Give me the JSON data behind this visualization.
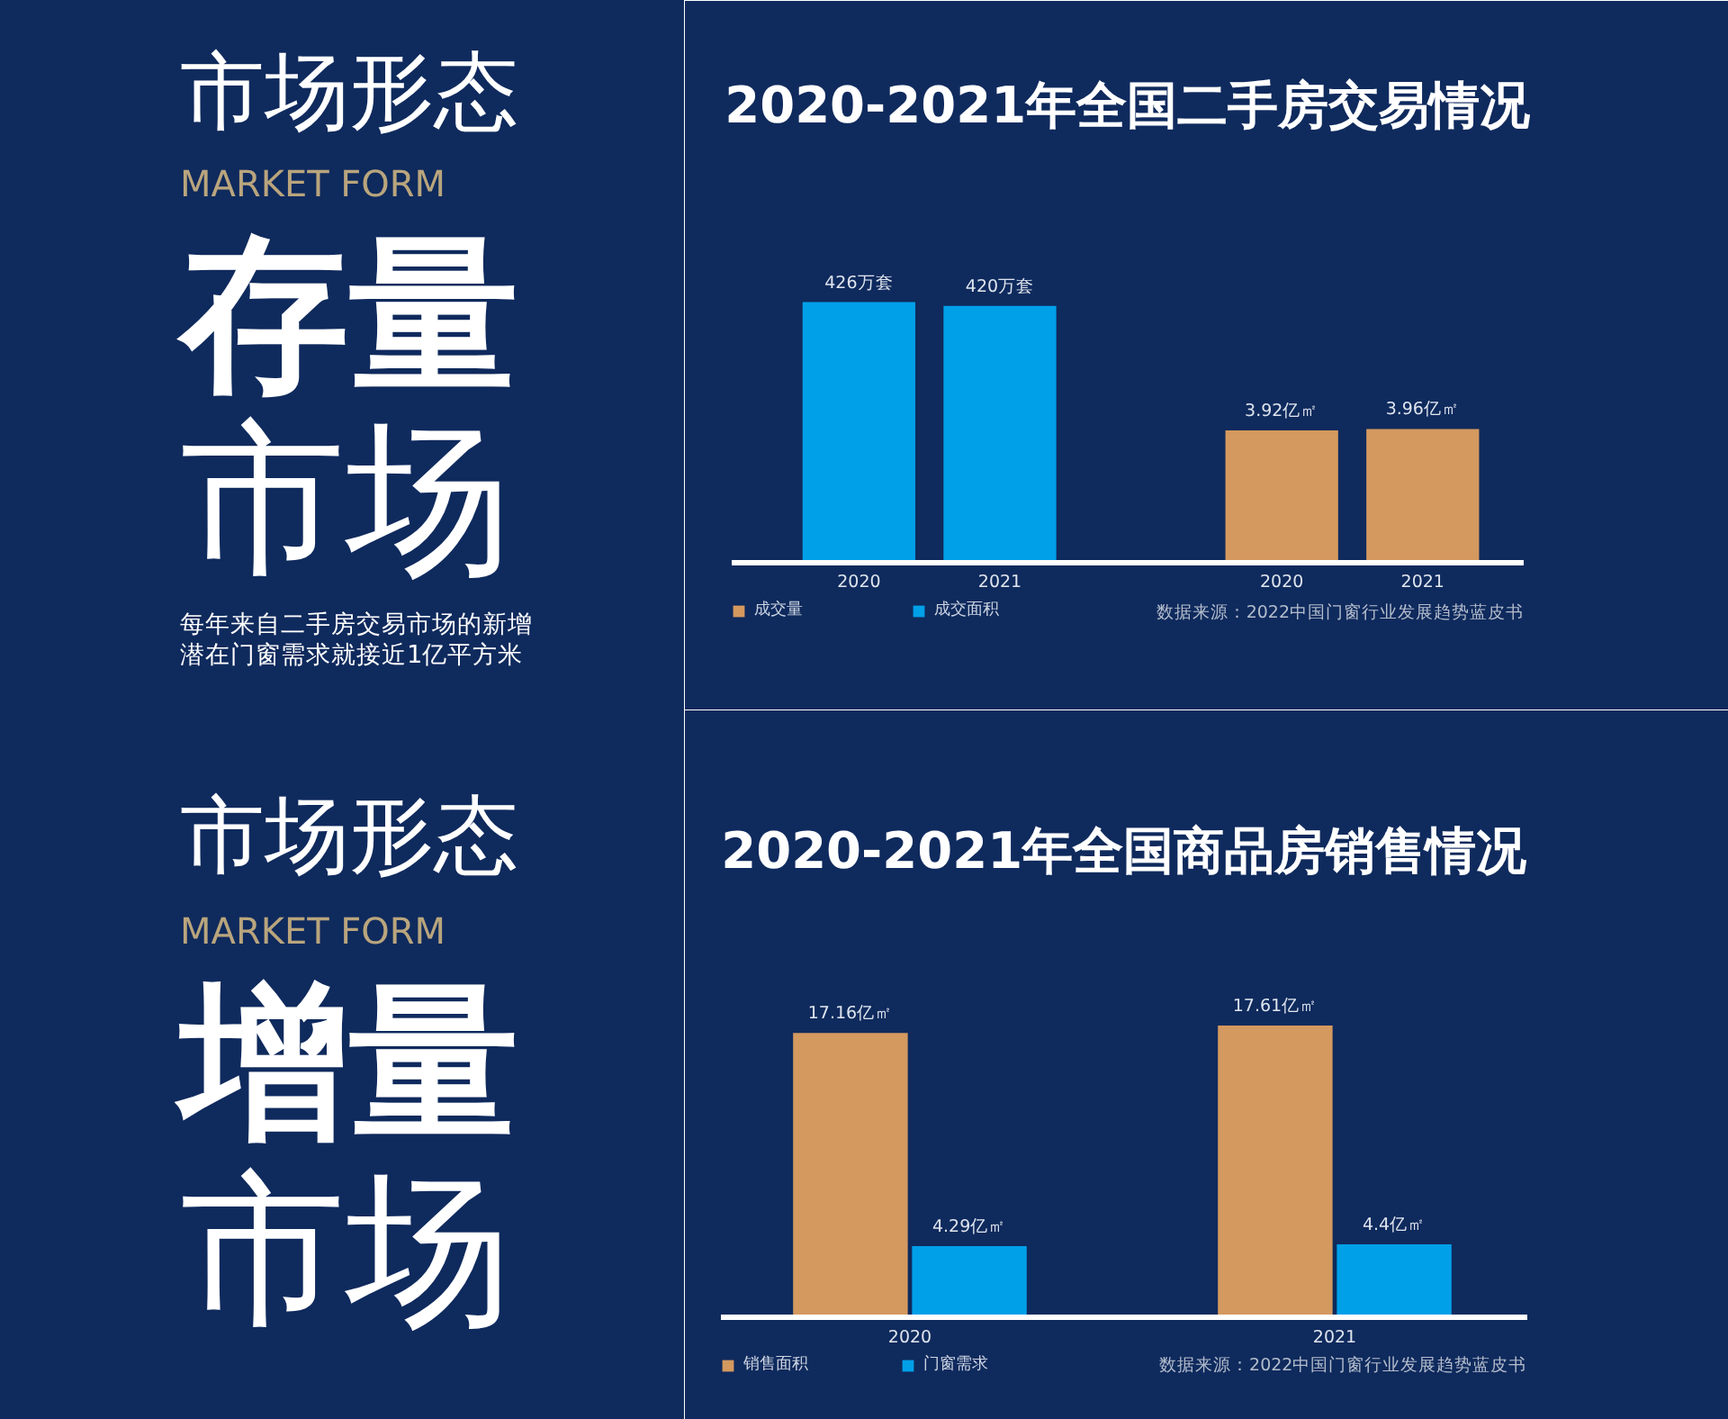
{
  "chart_data": [
    {
      "type": "other",
      "title": "市场形态",
      "subtitle": "MARKET FORM",
      "annotations": [
        "存量",
        "市场",
        "每年来自二手房交易市场的新增潜在门窗需求就接近1亿平方米"
      ]
    },
    {
      "type": "bar",
      "title": "2020-2021年全国二手房交易情况",
      "categories": [
        "2020",
        "2021",
        null,
        "2020",
        "2021"
      ],
      "tick_labels": "x",
      "series": [
        {
          "name": "成交量",
          "color": "#d4995f",
          "axis": "y2",
          "values": [
            null,
            null,
            null,
            3.92,
            3.96
          ],
          "value_labels": [
            null,
            null,
            null,
            "3.92亿㎡",
            "3.96亿㎡"
          ]
        },
        {
          "name": "成交面积",
          "color": "#00a0e9",
          "values": [
            426,
            420,
            null,
            null,
            null
          ],
          "value_labels": [
            "426万套",
            "420万套",
            null,
            null,
            null
          ]
        }
      ],
      "legend": "bottom left",
      "annotations": [
        "数据来源：2022中国门窗行业发展趋势蓝皮书"
      ]
    },
    {
      "type": "other",
      "title": "市场形态",
      "subtitle": "MARKET FORM",
      "annotations": [
        "增量",
        "市场"
      ]
    },
    {
      "type": "bar",
      "title": "2020-2021年全国商品房销售情况",
      "categories": [
        "2020",
        "2021"
      ],
      "tick_labels": "x",
      "series": [
        {
          "name": "销售面积",
          "color": "#d4995f",
          "values": [
            17.16,
            17.61
          ],
          "value_labels": [
            "17.16亿㎡",
            "17.61亿㎡"
          ]
        },
        {
          "name": "门窗需求",
          "color": "#00a0e9",
          "values": [
            4.29,
            4.4
          ],
          "value_labels": [
            "4.29亿㎡",
            "4.4亿㎡"
          ]
        }
      ],
      "legend": "bottom left",
      "annotations": [
        "数据来源：2022中国门窗行业发展趋势蓝皮书"
      ]
    }
  ]
}
